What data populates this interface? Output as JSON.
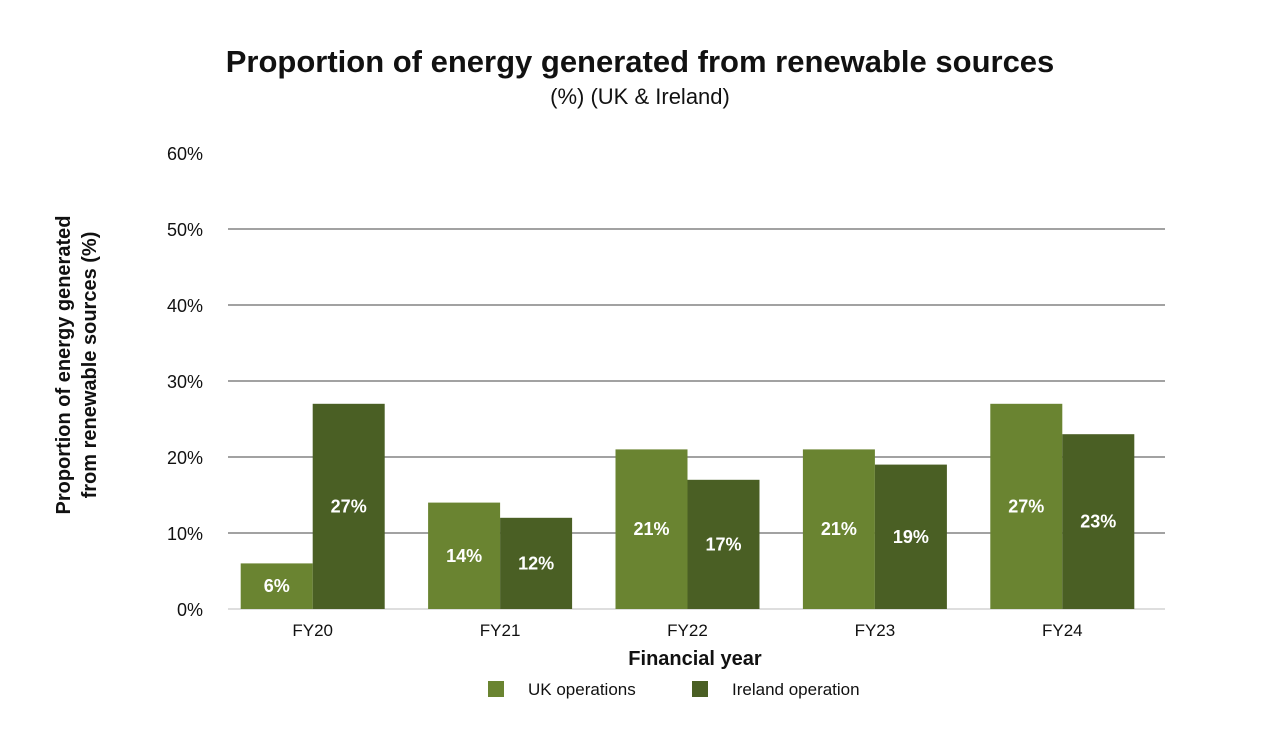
{
  "chart_data": {
    "type": "bar",
    "title": "Proportion of energy generated from renewable sources",
    "subtitle": "(%) (UK & Ireland)",
    "xlabel": "Financial year",
    "ylabel_line1": "Proportion of energy generated",
    "ylabel_line2": "from renewable sources (%)",
    "categories": [
      "FY20",
      "FY21",
      "FY22",
      "FY23",
      "FY24"
    ],
    "series": [
      {
        "name": "UK operations",
        "values": [
          6,
          14,
          21,
          21,
          27
        ],
        "labels": [
          "6%",
          "14%",
          "21%",
          "21%",
          "27%"
        ],
        "color": "#6a8431"
      },
      {
        "name": "Ireland operation",
        "values": [
          27,
          12,
          17,
          19,
          23
        ],
        "labels": [
          "27%",
          "12%",
          "17%",
          "19%",
          "23%"
        ],
        "color": "#4a5f24"
      }
    ],
    "ylim": [
      0,
      60
    ],
    "yticks": [
      0,
      10,
      20,
      30,
      40,
      50,
      60
    ],
    "ytick_labels": [
      "0%",
      "10%",
      "20%",
      "30%",
      "40%",
      "50%",
      "60%"
    ],
    "grid": true,
    "legend_position": "bottom"
  }
}
